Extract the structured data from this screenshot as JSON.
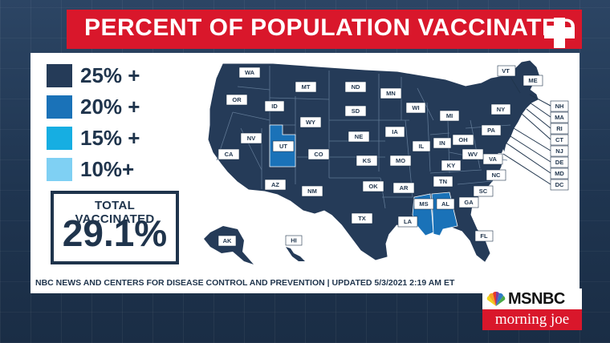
{
  "title": "PERCENT OF POPULATION VACCINATED",
  "legend": [
    {
      "label": "25% +",
      "color": "#253b58"
    },
    {
      "label": "20% +",
      "color": "#1a72b8"
    },
    {
      "label": "15% +",
      "color": "#16aee2"
    },
    {
      "label": "10%+",
      "color": "#7fd0f3"
    }
  ],
  "total": {
    "label": "TOTAL VACCINATED",
    "value": "29.1%"
  },
  "source": "NBC NEWS AND CENTERS FOR DISEASE CONTROL AND PREVENTION  |  UPDATED 5/3/2021 2:19 AM ET",
  "logo": {
    "network": "MSNBC",
    "show": "morning joe"
  },
  "colors": {
    "accent_red": "#d9172b",
    "navy": "#253b58",
    "ut_al_ms_fill": "#1a72b8"
  },
  "states": {
    "WA": "WA",
    "OR": "OR",
    "CA": "CA",
    "NV": "NV",
    "ID": "ID",
    "MT": "MT",
    "WY": "WY",
    "UT": "UT",
    "CO": "CO",
    "AZ": "AZ",
    "NM": "NM",
    "ND": "ND",
    "SD": "SD",
    "NE": "NE",
    "KS": "KS",
    "OK": "OK",
    "TX": "TX",
    "MN": "MN",
    "IA": "IA",
    "MO": "MO",
    "AR": "AR",
    "LA": "LA",
    "WI": "WI",
    "IL": "IL",
    "MI": "MI",
    "IN": "IN",
    "OH": "OH",
    "KY": "KY",
    "TN": "TN",
    "MS": "MS",
    "AL": "AL",
    "GA": "GA",
    "FL": "FL",
    "SC": "SC",
    "NC": "NC",
    "VA": "VA",
    "WV": "WV",
    "PA": "PA",
    "NY": "NY",
    "VT": "VT",
    "ME": "ME",
    "NH": "NH",
    "MA": "MA",
    "RI": "RI",
    "CT": "CT",
    "NJ": "NJ",
    "DE": "DE",
    "MD": "MD",
    "DC": "DC",
    "AK": "AK",
    "HI": "HI"
  }
}
